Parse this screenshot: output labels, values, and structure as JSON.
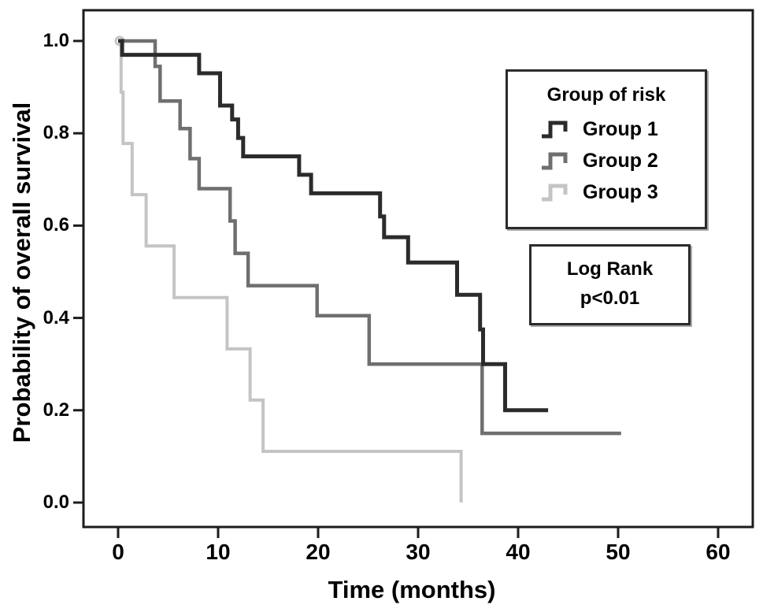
{
  "chart_data": {
    "type": "line",
    "subtype": "kaplan-meier-step",
    "title": "",
    "xlabel": "Time (months)",
    "ylabel": "Probability of overall survival",
    "xlim": [
      0,
      60
    ],
    "ylim": [
      0.0,
      1.0
    ],
    "grid": false,
    "axis_color": "#1c1c1c",
    "x_tick_values": [
      0,
      10,
      20,
      30,
      40,
      50,
      60
    ],
    "x_tick_labels": [
      "0",
      "10",
      "20",
      "30",
      "40",
      "50",
      "60"
    ],
    "y_tick_values": [
      1.0,
      0.8,
      0.6,
      0.4,
      0.2,
      0.0
    ],
    "y_tick_labels": [
      "1.0",
      "0.8",
      "0.6",
      "0.4",
      "0.2",
      "0.0"
    ],
    "legend_position": "upper-right-inside",
    "series": [
      {
        "name": "Group 3",
        "color": "#c4c4c4",
        "stroke_width": 4,
        "start_marker_circle": true,
        "steps": [
          [
            0,
            1.0
          ],
          [
            0.3,
            0.889
          ],
          [
            0.5,
            0.778
          ],
          [
            1.4,
            0.667
          ],
          [
            2.8,
            0.556
          ],
          [
            5.6,
            0.444
          ],
          [
            10.9,
            0.333
          ],
          [
            13.2,
            0.222
          ],
          [
            14.5,
            0.111
          ],
          [
            34.3,
            0.0
          ]
        ],
        "end_time": 34.3
      },
      {
        "name": "Group 2",
        "color": "#6f6f6f",
        "stroke_width": 4.5,
        "start_marker_circle": false,
        "steps": [
          [
            0,
            1.0
          ],
          [
            3.7,
            0.945
          ],
          [
            4.2,
            0.87
          ],
          [
            6.2,
            0.81
          ],
          [
            7.2,
            0.745
          ],
          [
            8.1,
            0.68
          ],
          [
            11.2,
            0.61
          ],
          [
            11.7,
            0.54
          ],
          [
            13.0,
            0.47
          ],
          [
            19.9,
            0.405
          ],
          [
            25.1,
            0.3
          ],
          [
            36.4,
            0.15
          ]
        ],
        "end_time": 50.3
      },
      {
        "name": "Group 1",
        "color": "#2b2b2b",
        "stroke_width": 5,
        "start_marker_circle": false,
        "steps": [
          [
            0,
            1.0
          ],
          [
            0.4,
            0.97
          ],
          [
            8.1,
            0.93
          ],
          [
            10.2,
            0.86
          ],
          [
            11.4,
            0.83
          ],
          [
            12.0,
            0.79
          ],
          [
            12.5,
            0.75
          ],
          [
            18.1,
            0.71
          ],
          [
            19.3,
            0.67
          ],
          [
            26.2,
            0.62
          ],
          [
            26.6,
            0.575
          ],
          [
            29.0,
            0.52
          ],
          [
            33.9,
            0.45
          ],
          [
            36.2,
            0.375
          ],
          [
            36.5,
            0.3
          ],
          [
            38.7,
            0.2
          ]
        ],
        "end_time": 43.0
      }
    ]
  },
  "legend": {
    "title": "Group of risk",
    "items": [
      {
        "label": "Group 1",
        "series": "Group 1"
      },
      {
        "label": "Group 2",
        "series": "Group 2"
      },
      {
        "label": "Group 3",
        "series": "Group 3"
      }
    ]
  },
  "annotations": {
    "logrank": {
      "line1": "Log Rank",
      "line2": "p<0.01"
    }
  }
}
